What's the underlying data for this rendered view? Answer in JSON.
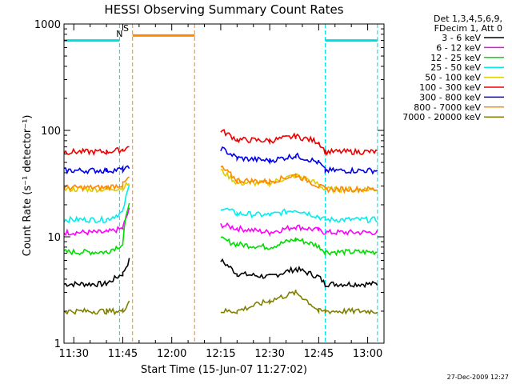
{
  "chart_data": {
    "type": "line",
    "title": "HESSI Observing Summary Count Rates",
    "xlabel": "Start Time (15-Jun-07 11:27:02)",
    "ylabel": "Count Rate (s⁻¹ detector⁻¹)",
    "y_scale": "log",
    "ylim": [
      1,
      1000
    ],
    "xlim": [
      "11:27",
      "13:05"
    ],
    "x_ticks": [
      "11:30",
      "11:45",
      "12:00",
      "12:15",
      "12:30",
      "12:45",
      "13:00"
    ],
    "y_ticks": [
      "1",
      "10",
      "100",
      "1000"
    ],
    "legend_header": [
      "Det 1,3,4,5,6,9,",
      "FDecim 1, Att 0"
    ],
    "legend_placement": "right",
    "series": [
      {
        "name": "3 - 6 keV",
        "color": "#000000",
        "x": [
          "11:27",
          "11:40",
          "11:45",
          "11:47",
          "12:12",
          "12:15",
          "12:20",
          "12:30",
          "12:38",
          "12:45",
          "12:47",
          "13:03"
        ],
        "values": [
          3.6,
          3.6,
          4.5,
          6,
          null,
          6,
          4.5,
          4.2,
          5,
          4.2,
          3.6,
          3.6
        ]
      },
      {
        "name": "6 - 12 keV",
        "color": "#ff00ff",
        "x": [
          "11:27",
          "11:40",
          "11:45",
          "11:47",
          "12:12",
          "12:15",
          "12:20",
          "12:30",
          "12:38",
          "12:45",
          "12:47",
          "13:03"
        ],
        "values": [
          11,
          11,
          12,
          18,
          null,
          13,
          12,
          11,
          12.5,
          11.5,
          11,
          11
        ]
      },
      {
        "name": "12 - 25 keV",
        "color": "#00dd00",
        "x": [
          "11:27",
          "11:40",
          "11:45",
          "11:47",
          "12:12",
          "12:15",
          "12:20",
          "12:30",
          "12:38",
          "12:45",
          "12:47",
          "13:03"
        ],
        "values": [
          7.2,
          7.2,
          8.5,
          22,
          null,
          9.5,
          8.5,
          8,
          9.5,
          8.2,
          7.2,
          7.2
        ]
      },
      {
        "name": "25 - 50 keV",
        "color": "#00eeee",
        "x": [
          "11:27",
          "11:40",
          "11:45",
          "11:47",
          "12:12",
          "12:15",
          "12:20",
          "12:30",
          "12:38",
          "12:45",
          "12:47",
          "13:03"
        ],
        "values": [
          14.5,
          14.5,
          17,
          30,
          null,
          19,
          16.5,
          16,
          18,
          15.5,
          14.5,
          14.5
        ]
      },
      {
        "name": "50 - 100 keV",
        "color": "#ddcc00",
        "x": [
          "11:27",
          "11:40",
          "11:45",
          "11:47",
          "12:12",
          "12:15",
          "12:20",
          "12:30",
          "12:38",
          "12:45",
          "12:47",
          "13:03"
        ],
        "values": [
          28,
          28,
          29,
          32,
          null,
          42,
          32,
          32,
          38,
          31,
          28,
          28
        ]
      },
      {
        "name": "100 - 300 keV",
        "color": "#ee0000",
        "x": [
          "11:27",
          "11:40",
          "11:45",
          "11:47",
          "12:12",
          "12:15",
          "12:20",
          "12:30",
          "12:38",
          "12:45",
          "12:47",
          "13:03"
        ],
        "values": [
          63,
          63,
          66,
          70,
          null,
          100,
          82,
          80,
          88,
          78,
          63,
          63
        ]
      },
      {
        "name": "300 - 800 keV",
        "color": "#0000ee",
        "x": [
          "11:27",
          "11:40",
          "11:45",
          "11:47",
          "12:12",
          "12:15",
          "12:20",
          "12:30",
          "12:38",
          "12:45",
          "12:47",
          "13:03"
        ],
        "values": [
          42,
          42,
          43,
          44,
          null,
          68,
          55,
          52,
          58,
          50,
          42,
          42
        ]
      },
      {
        "name": "800 - 7000 keV",
        "color": "#ff8800",
        "x": [
          "11:27",
          "11:40",
          "11:45",
          "11:47",
          "12:12",
          "12:15",
          "12:20",
          "12:30",
          "12:38",
          "12:45",
          "12:47",
          "13:03"
        ],
        "values": [
          29,
          29,
          31,
          36,
          null,
          45,
          34,
          33,
          38,
          30,
          28,
          28
        ]
      },
      {
        "name": "7000 - 20000 keV",
        "color": "#808000",
        "x": [
          "11:27",
          "11:40",
          "11:45",
          "11:47",
          "12:12",
          "12:15",
          "12:20",
          "12:30",
          "12:38",
          "12:45",
          "12:47",
          "13:03"
        ],
        "values": [
          2,
          2,
          2,
          2.5,
          null,
          2,
          2,
          2.5,
          3,
          2,
          2,
          2
        ]
      }
    ],
    "markers": [
      {
        "label": "N",
        "color": "#00cccc",
        "time": "11:44"
      },
      {
        "label": "S",
        "color": "#ff8800",
        "time": "11:46"
      }
    ],
    "orbit_flags": [
      {
        "name": "night",
        "color": "#00dddd",
        "start": "11:27",
        "end": "11:44",
        "level": 700
      },
      {
        "name": "saa",
        "color": "#ff8800",
        "start": "11:48",
        "end": "12:07",
        "level": 780
      },
      {
        "name": "night",
        "color": "#00dddd",
        "start": "12:47",
        "end": "13:03",
        "level": 700
      }
    ]
  },
  "footer": {
    "timestamp": "27-Dec-2009 12:27"
  }
}
